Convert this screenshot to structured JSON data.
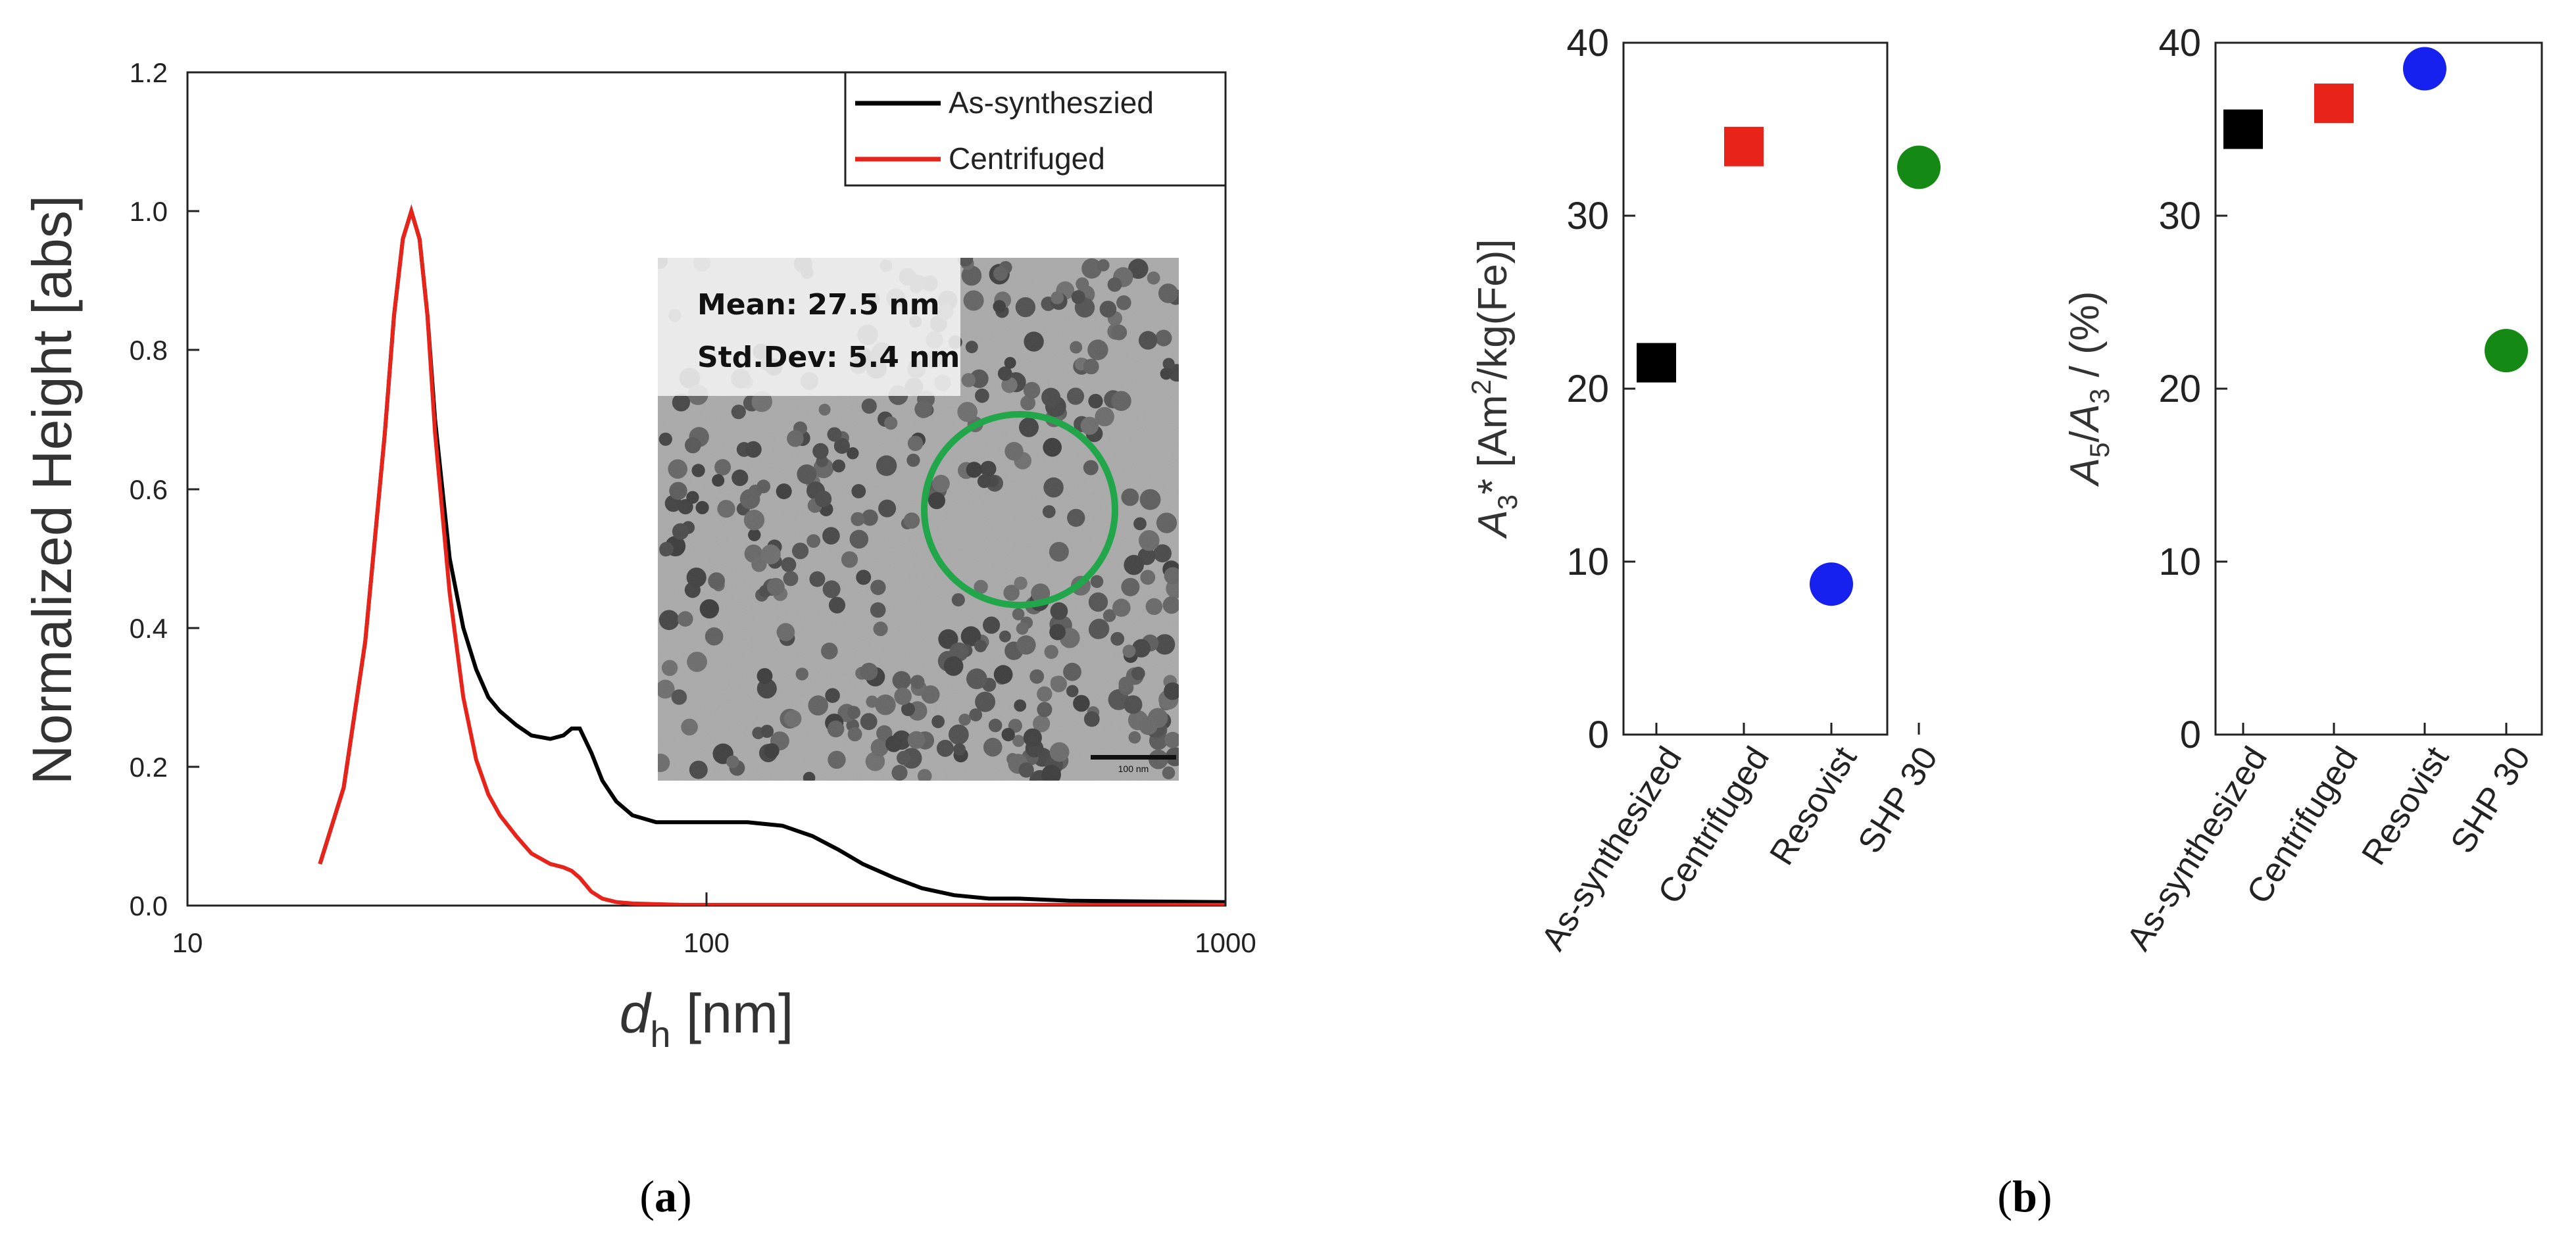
{
  "captions": {
    "a": {
      "open": "(",
      "letter": "a",
      "close": ")"
    },
    "b": {
      "open": "(",
      "letter": "b",
      "close": ")"
    }
  },
  "colors": {
    "as_synthesized": "#000000",
    "centrifuged": "#e8231a",
    "resovist": "#1621f0",
    "shp30": "#148a14",
    "inset_circle": "#22a64a",
    "inset_bg": "#a9a9a9"
  },
  "chart_data": [
    {
      "type": "line",
      "title": "",
      "xlabel": {
        "symbol": "d",
        "subscript": "h",
        "unit": " [nm]"
      },
      "ylabel": "Normalized Height [abs]",
      "xscale": "log",
      "xlim": [
        10,
        1000
      ],
      "ylim": [
        0,
        1.2
      ],
      "xticks": [
        10,
        100,
        1000
      ],
      "xtick_labels": [
        "10",
        "100",
        "1000"
      ],
      "yticks": [
        0,
        0.2,
        0.4,
        0.6,
        0.8,
        1.0,
        1.2
      ],
      "ytick_labels": [
        "0.0",
        "0.2",
        "0.4",
        "0.6",
        "0.8",
        "1.0",
        "1.2"
      ],
      "legend": {
        "placement": "top-right",
        "entries": [
          "As-syntheszied",
          "Centrifuged"
        ]
      },
      "series": [
        {
          "name": "As-syntheszied",
          "color_key": "as_synthesized",
          "x": [
            18,
            20,
            22,
            24,
            25,
            26,
            27,
            28,
            29,
            30,
            32,
            34,
            36,
            38,
            40,
            43,
            46,
            50,
            53,
            55,
            57,
            60,
            63,
            67,
            72,
            80,
            90,
            100,
            120,
            140,
            160,
            180,
            200,
            230,
            260,
            300,
            350,
            400,
            500,
            700,
            1000
          ],
          "y": [
            0.06,
            0.17,
            0.38,
            0.68,
            0.85,
            0.96,
            1.0,
            0.96,
            0.85,
            0.7,
            0.5,
            0.4,
            0.34,
            0.3,
            0.28,
            0.26,
            0.245,
            0.24,
            0.245,
            0.255,
            0.255,
            0.22,
            0.18,
            0.15,
            0.13,
            0.12,
            0.12,
            0.12,
            0.12,
            0.115,
            0.1,
            0.08,
            0.06,
            0.04,
            0.025,
            0.015,
            0.01,
            0.01,
            0.007,
            0.006,
            0.005
          ]
        },
        {
          "name": "Centrifuged",
          "color_key": "centrifuged",
          "x": [
            18,
            20,
            22,
            24,
            25,
            26,
            27,
            28,
            29,
            30,
            32,
            34,
            36,
            38,
            40,
            43,
            46,
            50,
            53,
            55,
            57,
            60,
            63,
            67,
            72,
            80,
            90,
            100,
            120,
            150,
            200,
            300,
            500,
            1000
          ],
          "y": [
            0.06,
            0.17,
            0.38,
            0.68,
            0.85,
            0.96,
            1.0,
            0.96,
            0.85,
            0.68,
            0.45,
            0.3,
            0.21,
            0.16,
            0.13,
            0.1,
            0.075,
            0.06,
            0.055,
            0.05,
            0.04,
            0.02,
            0.01,
            0.005,
            0.003,
            0.002,
            0.001,
            0.001,
            0.001,
            0.001,
            0.001,
            0.001,
            0.001,
            0.001
          ]
        }
      ],
      "inset": {
        "type": "TEM image",
        "annotation_mean": "Mean:  27.5 nm",
        "annotation_std": "Std.Dev: 5.4 nm",
        "scalebar_label": "100 nm"
      }
    },
    {
      "type": "scatter",
      "title": "",
      "ylabel": {
        "symbol": "A",
        "sub": "3",
        "star": "*",
        "pre": " [Am",
        "sup": "2",
        "post": "/kg(Fe)]"
      },
      "ylim": [
        0,
        40
      ],
      "yticks": [
        0,
        10,
        20,
        30,
        40
      ],
      "ytick_labels": [
        "0",
        "10",
        "20",
        "30",
        "40"
      ],
      "categories": [
        "As-synthesized",
        "Centrifuged",
        "Resovist",
        "SHP 30"
      ],
      "values": [
        21.5,
        34.0,
        8.7,
        32.8
      ],
      "markers": [
        "square",
        "square",
        "circle",
        "circle"
      ],
      "color_keys": [
        "as_synthesized",
        "centrifuged",
        "resovist",
        "shp30"
      ]
    },
    {
      "type": "scatter",
      "title": "",
      "ylabel": {
        "a": "A",
        "sub5": "5",
        "slash": "/",
        "b": "A",
        "sub3": "3",
        "post": " / (%)"
      },
      "ylim": [
        0,
        40
      ],
      "yticks": [
        0,
        10,
        20,
        30,
        40
      ],
      "ytick_labels": [
        "0",
        "10",
        "20",
        "30",
        "40"
      ],
      "categories": [
        "As-synthesized",
        "Centrifuged",
        "Resovist",
        "SHP 30"
      ],
      "values": [
        35.0,
        36.5,
        38.5,
        22.2
      ],
      "markers": [
        "square",
        "square",
        "circle",
        "circle"
      ],
      "color_keys": [
        "as_synthesized",
        "centrifuged",
        "resovist",
        "shp30"
      ]
    }
  ]
}
